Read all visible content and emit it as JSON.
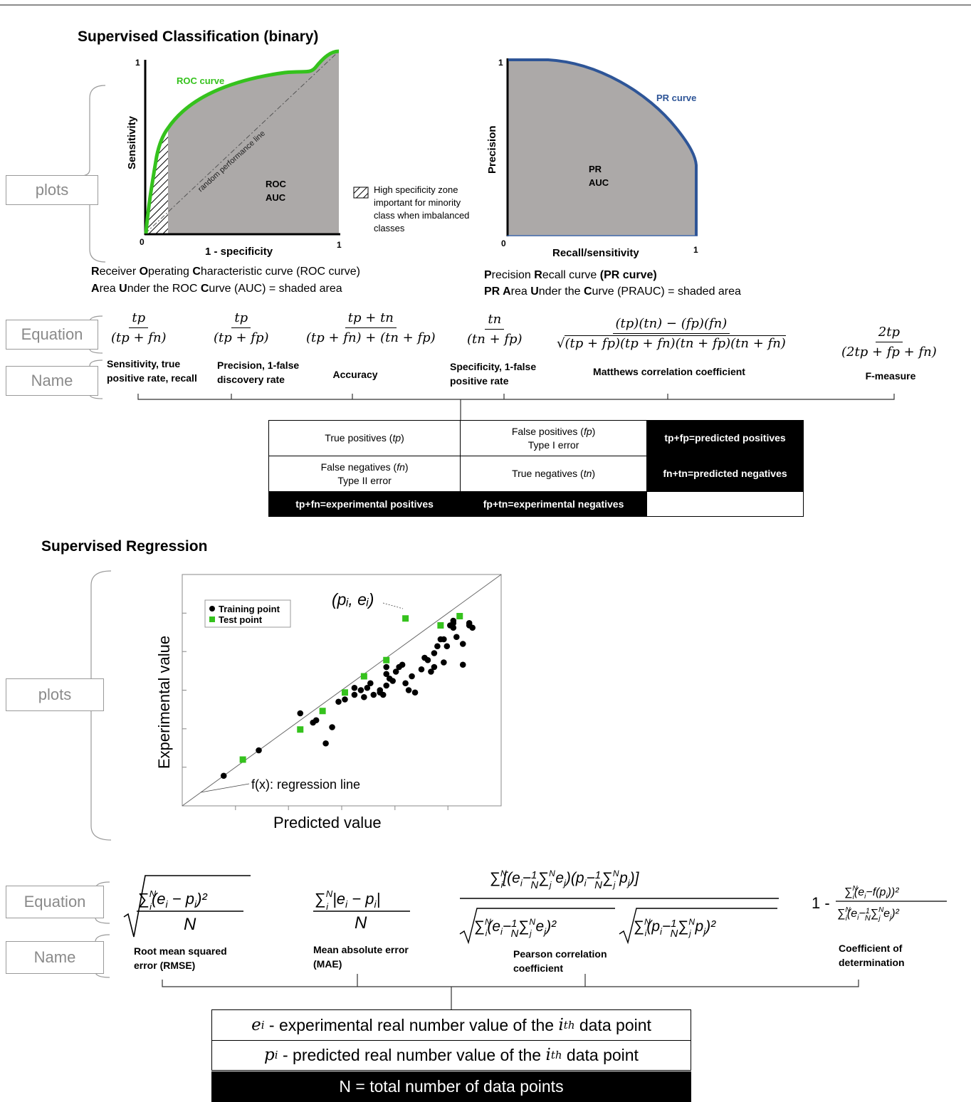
{
  "classification": {
    "title": "Supervised Classification (binary)",
    "plots_box": "plots",
    "equation_box": "Equation",
    "name_box": "Name",
    "roc": {
      "y_label": "Sensitivity",
      "x_label": "1 - specificity",
      "tick_y1": "1",
      "tick_0": "0",
      "tick_x1": "1",
      "curve_label": "ROC curve",
      "diag_label": "random performance line",
      "auc_label_1": "ROC",
      "auc_label_2": "AUC",
      "curve_color": "#35c21d",
      "fill_color": "#aca9a8"
    },
    "hatch_legend": [
      "High specificity zone",
      "important for minority",
      "class when imbalanced",
      "classes"
    ],
    "pr": {
      "y_label": "Precision",
      "x_label": "Recall/sensitivity",
      "tick_y1": "1",
      "tick_0": "0",
      "tick_x1": "1",
      "curve_label": "PR curve",
      "auc_label_1": "PR",
      "auc_label_2": "AUC",
      "curve_color": "#2e5597"
    },
    "roc_caption_1": {
      "b1": "R",
      "t1": "eceiver ",
      "b2": "O",
      "t2": "perating ",
      "b3": "C",
      "t3": "haracteristic curve (ROC curve)"
    },
    "roc_caption_2": {
      "b1": "A",
      "t1": "rea ",
      "b2": "U",
      "t2": "nder the ROC ",
      "b3": "C",
      "t3": "urve (AUC) = shaded area"
    },
    "pr_caption_1": {
      "b1": "P",
      "t1": "recision ",
      "b2": "R",
      "t2": "ecall curve ",
      "b3": "(PR curve)"
    },
    "pr_caption_2": {
      "b1": "PR A",
      "t1": "rea ",
      "b2": "U",
      "t2": "nder the ",
      "b3": "C",
      "t3": "urve (PRAUC) = shaded area"
    },
    "metrics": [
      {
        "num": "tp",
        "den": "(tp + fn)",
        "name": [
          "Sensitivity, true",
          "positive rate, recall"
        ]
      },
      {
        "num": "tp",
        "den": "(tp + fp)",
        "name": [
          "Precision, 1-false",
          "discovery rate"
        ]
      },
      {
        "num": "tp + tn",
        "den": "(tp + fn) + (tn + fp)",
        "name": [
          "Accuracy"
        ]
      },
      {
        "num": "tn",
        "den": "(tn + fp)",
        "name": [
          "Specificity, 1-false",
          "positive rate"
        ]
      },
      {
        "num": "(tp)(tn) − (fp)(fn)",
        "den": "(tp + fp)(tp + fn)(tn + fp)(tn + fn)",
        "name": [
          "Matthews correlation coefficient"
        ]
      },
      {
        "num": "2tp",
        "den": "(2tp + fp + fn)",
        "name": [
          "F-measure"
        ]
      }
    ],
    "confusion": {
      "r1": {
        "a_pre": "True positives (",
        "a_it": "tp",
        "a_post": ")",
        "b_l1_pre": "False positives (",
        "b_l1_it": "fp",
        "b_l1_post": ")",
        "b_l2": "Type I error",
        "c": "tp+fp=predicted positives"
      },
      "r2": {
        "a_l1_pre": "False negatives (",
        "a_l1_it": "fn",
        "a_l1_post": ")",
        "a_l2": "Type II error",
        "b_pre": "True negatives (",
        "b_it": "tn",
        "b_post": ")",
        "c": "fn+tn=predicted negatives"
      },
      "r3": {
        "a": "tp+fn=experimental positives",
        "b": "fp+tn=experimental negatives"
      }
    }
  },
  "regression": {
    "title": "Supervised Regression",
    "plots_box": "plots",
    "equation_box": "Equation",
    "name_box": "Name",
    "scatter": {
      "x_label": "Predicted value",
      "y_label": "Experimental value",
      "legend_training": "Training point",
      "legend_test": "Test point",
      "annot_point": "(pᵢ, eᵢ)",
      "annot_line": "f(x): regression line",
      "test_color": "#35c21d"
    },
    "metrics": [
      {
        "name": [
          "Root mean squared",
          "error (RMSE)"
        ]
      },
      {
        "name": [
          "Mean absolute error",
          "(MAE)"
        ]
      },
      {
        "name": [
          "Pearson correlation",
          "coefficient"
        ]
      },
      {
        "name": [
          "Coefficient of",
          "determination"
        ]
      }
    ],
    "defs": {
      "e_sym": "e",
      "e_sub": "i",
      "e_text_pre": " - experimental real number value of the ",
      "e_th_i": "i",
      "e_th": "th",
      "e_text_post": " data point",
      "p_sym": "p",
      "p_sub": "i",
      "p_text_pre": " - predicted real number value of the ",
      "p_th_i": "i",
      "p_th": "th",
      "p_text_post": " data point",
      "n_text": "N = total number of data points"
    }
  },
  "chart_data": {
    "type": "scatter",
    "xlabel": "Predicted value",
    "ylabel": "Experimental value",
    "series": [
      {
        "name": "Training point",
        "points": [
          [
            0.13,
            0.13
          ],
          [
            0.24,
            0.24
          ],
          [
            0.37,
            0.4
          ],
          [
            0.41,
            0.36
          ],
          [
            0.42,
            0.37
          ],
          [
            0.45,
            0.27
          ],
          [
            0.47,
            0.34
          ],
          [
            0.49,
            0.45
          ],
          [
            0.51,
            0.46
          ],
          [
            0.54,
            0.51
          ],
          [
            0.54,
            0.48
          ],
          [
            0.56,
            0.5
          ],
          [
            0.57,
            0.47
          ],
          [
            0.58,
            0.51
          ],
          [
            0.59,
            0.53
          ],
          [
            0.6,
            0.48
          ],
          [
            0.62,
            0.5
          ],
          [
            0.62,
            0.49
          ],
          [
            0.63,
            0.48
          ],
          [
            0.64,
            0.57
          ],
          [
            0.64,
            0.52
          ],
          [
            0.64,
            0.6
          ],
          [
            0.65,
            0.55
          ],
          [
            0.66,
            0.54
          ],
          [
            0.67,
            0.58
          ],
          [
            0.68,
            0.6
          ],
          [
            0.69,
            0.61
          ],
          [
            0.7,
            0.53
          ],
          [
            0.71,
            0.5
          ],
          [
            0.72,
            0.56
          ],
          [
            0.73,
            0.49
          ],
          [
            0.75,
            0.59
          ],
          [
            0.76,
            0.64
          ],
          [
            0.77,
            0.63
          ],
          [
            0.78,
            0.58
          ],
          [
            0.79,
            0.6
          ],
          [
            0.79,
            0.66
          ],
          [
            0.8,
            0.69
          ],
          [
            0.81,
            0.72
          ],
          [
            0.82,
            0.62
          ],
          [
            0.82,
            0.72
          ],
          [
            0.83,
            0.69
          ],
          [
            0.84,
            0.78
          ],
          [
            0.85,
            0.79
          ],
          [
            0.85,
            0.77
          ],
          [
            0.85,
            0.8
          ],
          [
            0.86,
            0.73
          ],
          [
            0.88,
            0.7
          ],
          [
            0.88,
            0.61
          ],
          [
            0.9,
            0.78
          ],
          [
            0.9,
            0.79
          ],
          [
            0.91,
            0.77
          ]
        ]
      },
      {
        "name": "Test point",
        "points": [
          [
            0.19,
            0.2
          ],
          [
            0.37,
            0.33
          ],
          [
            0.44,
            0.41
          ],
          [
            0.51,
            0.49
          ],
          [
            0.57,
            0.56
          ],
          [
            0.64,
            0.63
          ],
          [
            0.7,
            0.81
          ],
          [
            0.81,
            0.78
          ],
          [
            0.87,
            0.82
          ]
        ]
      }
    ]
  }
}
